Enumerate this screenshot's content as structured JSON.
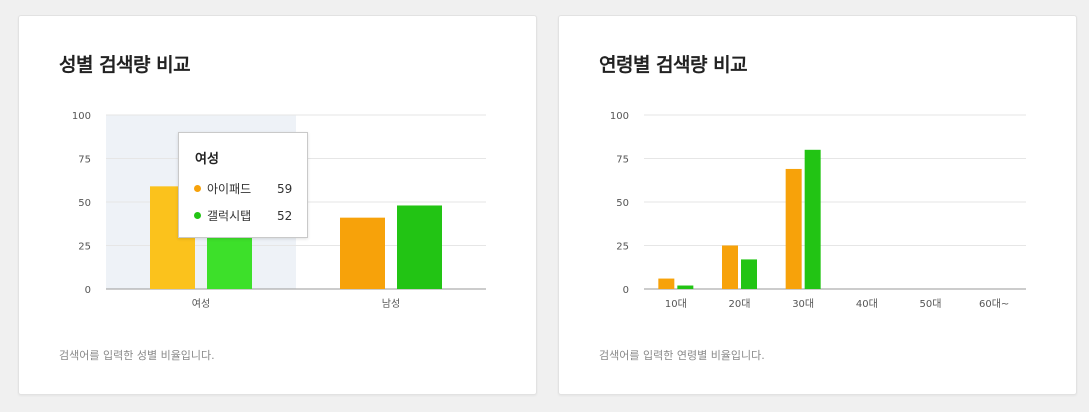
{
  "colors": {
    "series0": "#f7a20a",
    "series1": "#22c414",
    "series0_hover": "#fbc21c",
    "series1_hover": "#3de02a",
    "hover_band": "#eef2f7"
  },
  "gender_card": {
    "title": "성별 검색량 비교",
    "note": "검색어를 입력한 성별 비율입니다."
  },
  "age_card": {
    "title": "연령별 검색량 비교",
    "note": "검색어를 입력한 연령별 비율입니다."
  },
  "tooltip": {
    "title": "여성",
    "rows": [
      {
        "name": "아이패드",
        "value": "59"
      },
      {
        "name": "갤럭시탭",
        "value": "52"
      }
    ]
  },
  "chart_data": [
    {
      "type": "bar",
      "title": "성별 검색량 비교",
      "categories": [
        "여성",
        "남성"
      ],
      "series": [
        {
          "name": "아이패드",
          "values": [
            59,
            41
          ]
        },
        {
          "name": "갤럭시탭",
          "values": [
            52,
            48
          ]
        }
      ],
      "ylim": [
        0,
        100
      ],
      "yticks": [
        "0",
        "25",
        "50",
        "75",
        "100"
      ],
      "grid": true,
      "highlighted_category": "여성"
    },
    {
      "type": "bar",
      "title": "연령별 검색량 비교",
      "categories": [
        "10대",
        "20대",
        "30대",
        "40대",
        "50대",
        "60대~"
      ],
      "series": [
        {
          "name": "아이패드",
          "values": [
            6,
            25,
            69,
            0,
            0,
            0
          ]
        },
        {
          "name": "갤럭시탭",
          "values": [
            2,
            17,
            80,
            0,
            0,
            0
          ]
        }
      ],
      "ylim": [
        0,
        100
      ],
      "yticks": [
        "0",
        "25",
        "50",
        "75",
        "100"
      ],
      "grid": true
    }
  ]
}
